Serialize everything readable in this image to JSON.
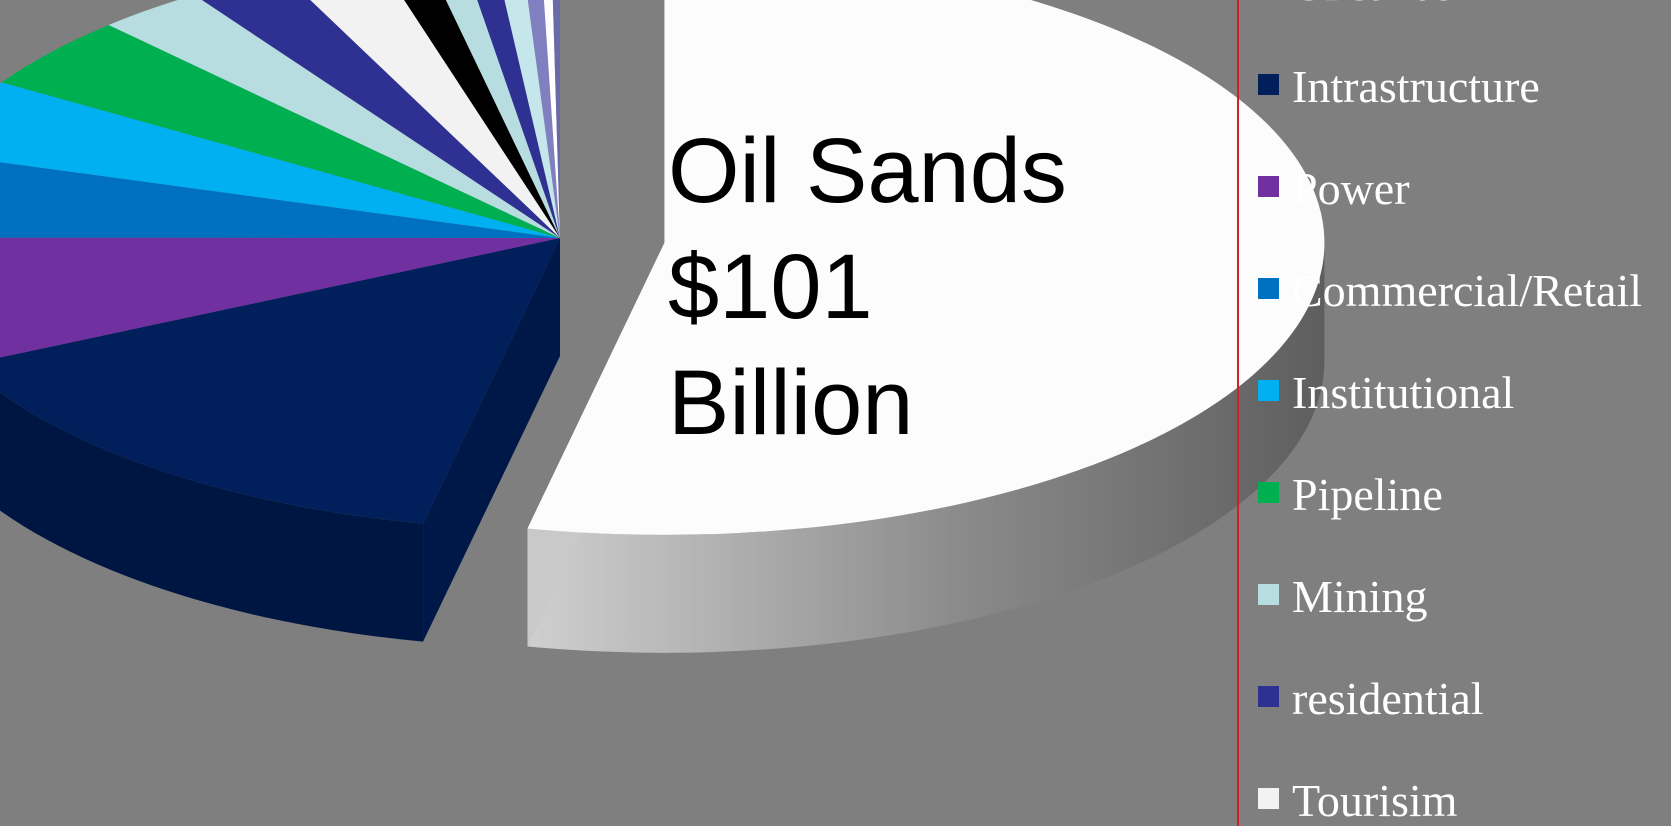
{
  "chart_data": {
    "type": "pie",
    "title": "",
    "callout": {
      "lines": [
        "Oil Sands",
        "$101",
        "Billion"
      ]
    },
    "slices": [
      {
        "name": "Oilsands",
        "value": 101,
        "color": "#fcfcfc"
      },
      {
        "name": "Intrastructure",
        "value": 27.5,
        "color": "#001f5b"
      },
      {
        "name": "Power",
        "value": 13.6,
        "color": "#7030a0"
      },
      {
        "name": "Commercial/Retail",
        "value": 8.9,
        "color": "#0070c0"
      },
      {
        "name": "Institutional",
        "value": 8.0,
        "color": "#00b0f0"
      },
      {
        "name": "Pipeline",
        "value": 7.7,
        "color": "#00b050"
      },
      {
        "name": "Mining",
        "value": 5.0,
        "color": "#b7dde0"
      },
      {
        "name": "residential",
        "value": 4.6,
        "color": "#2e3192"
      },
      {
        "name": "Tourisim",
        "value": 4.6,
        "color": "#f2f2f2"
      },
      {
        "name": "",
        "value": 2.2,
        "color": "#000000"
      },
      {
        "name": "",
        "value": 1.7,
        "color": "#b7dde0"
      },
      {
        "name": "",
        "value": 1.5,
        "color": "#2e3192"
      },
      {
        "name": "",
        "value": 1.3,
        "color": "#c5e7ec"
      },
      {
        "name": "",
        "value": 0.9,
        "color": "#8080c0"
      },
      {
        "name": "",
        "value": 0.5,
        "color": "#ffffff"
      },
      {
        "name": "",
        "value": 0.4,
        "color": "#6a6aa8"
      }
    ],
    "legend": {
      "position": "right",
      "items": [
        {
          "label": "Oilsands",
          "color": "#fcfcfc"
        },
        {
          "label": "Intrastructure",
          "color": "#001f5b"
        },
        {
          "label": "Power",
          "color": "#7030a0"
        },
        {
          "label": "Commercial/Retail",
          "color": "#0070c0"
        },
        {
          "label": "Institutional",
          "color": "#00b0f0"
        },
        {
          "label": "Pipeline",
          "color": "#00b050"
        },
        {
          "label": "Mining",
          "color": "#b7dde0"
        },
        {
          "label": "residential",
          "color": "#2e3192"
        },
        {
          "label": "Tourisim",
          "color": "#f2f2f2"
        }
      ]
    }
  },
  "colors": {
    "background": "#7f7f7f",
    "divider": "#d0202a",
    "legend_text": "#ffffff"
  }
}
